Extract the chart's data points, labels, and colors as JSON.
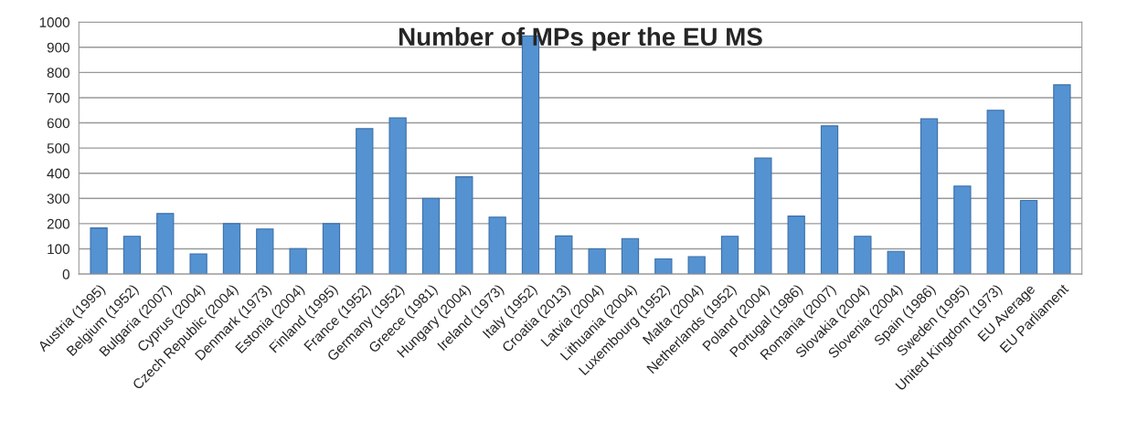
{
  "chart_data": {
    "type": "bar",
    "title": "Number of MPs per the EU MS",
    "categories": [
      "Austria (1995)",
      "Belgium (1952)",
      "Bulgaria (2007)",
      "Cyprus (2004)",
      "Czech Republic (2004)",
      "Denmark (1973)",
      "Estonia (2004)",
      "Finland (1995)",
      "France (1952)",
      "Germany (1952)",
      "Greece (1981)",
      "Hungary (2004)",
      "Ireland (1973)",
      "Italy (1952)",
      "Croatia (2013)",
      "Latvia (2004)",
      "Lithuania (2004)",
      "Luxembourg (1952)",
      "Malta (2004)",
      "Netherlands (1952)",
      "Poland (2004)",
      "Portugal (1986)",
      "Romania (2007)",
      "Slovakia (2004)",
      "Slovenia (2004)",
      "Spain (1986)",
      "Sweden (1995)",
      "United Kingdom (1973)",
      "EU Average",
      "EU Parliament"
    ],
    "values": [
      183,
      150,
      240,
      80,
      200,
      179,
      101,
      200,
      577,
      620,
      300,
      386,
      226,
      945,
      151,
      100,
      141,
      60,
      69,
      150,
      460,
      230,
      588,
      150,
      90,
      616,
      349,
      650,
      292,
      751
    ],
    "color": "#5592d2",
    "ylim": [
      0,
      1000
    ],
    "yticks": [
      0,
      100,
      200,
      300,
      400,
      500,
      600,
      700,
      800,
      900,
      1000
    ],
    "grid": "y"
  }
}
